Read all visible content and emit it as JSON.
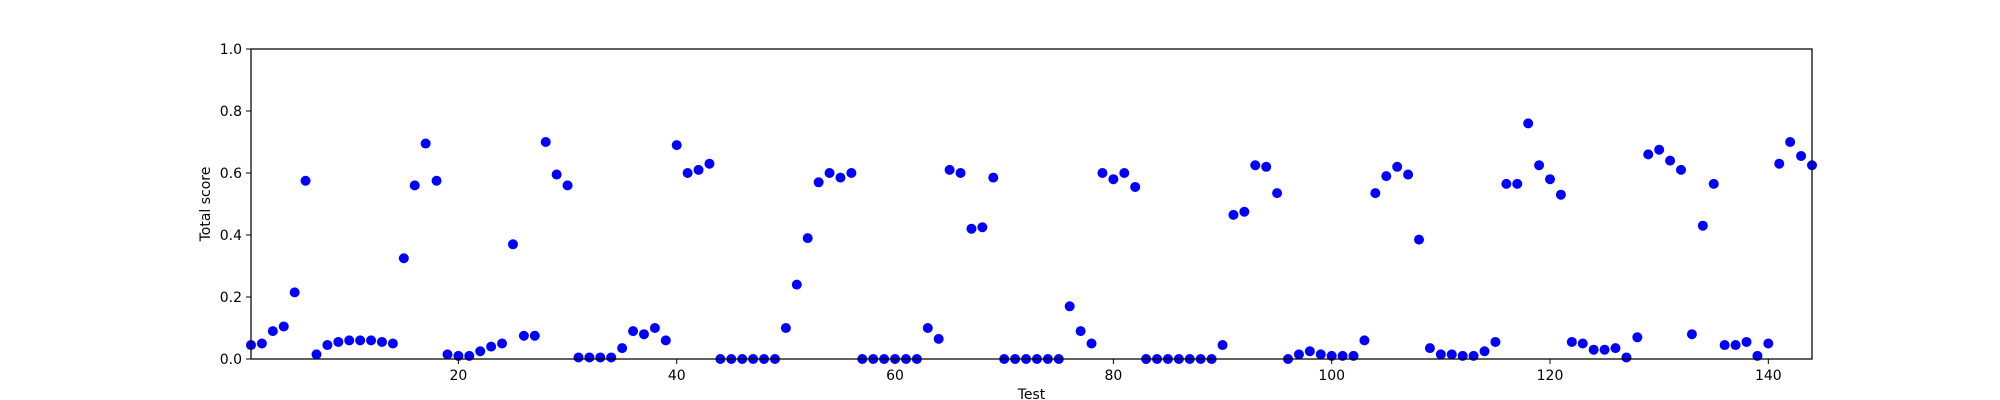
{
  "chart_data": {
    "type": "scatter",
    "title": "",
    "xlabel": "Test",
    "ylabel": "Total score",
    "xlim": [
      1,
      144
    ],
    "ylim": [
      0,
      1.0
    ],
    "xticks": [
      20,
      40,
      60,
      80,
      100,
      120,
      140
    ],
    "yticks": [
      0.0,
      0.2,
      0.4,
      0.6,
      0.8,
      1.0
    ],
    "xtick_labels": [
      "20",
      "40",
      "60",
      "80",
      "100",
      "120",
      "140"
    ],
    "ytick_labels": [
      "0.0",
      "0.2",
      "0.4",
      "0.6",
      "0.8",
      "1.0"
    ],
    "grid": false,
    "marker_color": "#0000ff",
    "series": [
      {
        "x": [
          1,
          2,
          3,
          4,
          5,
          6,
          7,
          8,
          9,
          10,
          11,
          12,
          13,
          14,
          15,
          16,
          17,
          18,
          19,
          20,
          21,
          22,
          23,
          24,
          25,
          26,
          27,
          28,
          29,
          30,
          31,
          32,
          33,
          34,
          35,
          36,
          37,
          38,
          39,
          40,
          41,
          42,
          43,
          44,
          45,
          46,
          47,
          48,
          49,
          50,
          51,
          52,
          53,
          54,
          55,
          56,
          57,
          58,
          59,
          60,
          61,
          62,
          63,
          64,
          65,
          66,
          67,
          68,
          69,
          70,
          71,
          72,
          73,
          74,
          75,
          76,
          77,
          78,
          79,
          80,
          81,
          82,
          83,
          84,
          85,
          86,
          87,
          88,
          89,
          90,
          91,
          92,
          93,
          94,
          95,
          96,
          97,
          98,
          99,
          100,
          101,
          102,
          103,
          104,
          105,
          106,
          107,
          108,
          109,
          110,
          111,
          112,
          113,
          114,
          115,
          116,
          117,
          118,
          119,
          120,
          121,
          122,
          123,
          124,
          125,
          126,
          127,
          128,
          129,
          130,
          131,
          132,
          133,
          134,
          135,
          136,
          137,
          138,
          139,
          140,
          141,
          142,
          143,
          144
        ],
        "y": [
          0.045,
          0.05,
          0.09,
          0.105,
          0.215,
          0.575,
          0.015,
          0.045,
          0.055,
          0.06,
          0.06,
          0.06,
          0.055,
          0.05,
          0.325,
          0.56,
          0.695,
          0.575,
          0.015,
          0.01,
          0.01,
          0.025,
          0.04,
          0.05,
          0.37,
          0.075,
          0.075,
          0.7,
          0.595,
          0.56,
          0.005,
          0.005,
          0.005,
          0.005,
          0.035,
          0.09,
          0.08,
          0.1,
          0.06,
          0.69,
          0.6,
          0.61,
          0.63,
          0.0,
          0.0,
          0.0,
          0.0,
          0.0,
          0.0,
          0.1,
          0.24,
          0.39,
          0.57,
          0.6,
          0.585,
          0.6,
          0.0,
          0.0,
          0.0,
          0.0,
          0.0,
          0.0,
          0.1,
          0.065,
          0.61,
          0.6,
          0.42,
          0.425,
          0.585,
          0.0,
          0.0,
          0.0,
          0.0,
          0.0,
          0.0,
          0.17,
          0.09,
          0.05,
          0.6,
          0.58,
          0.6,
          0.555,
          0.0,
          0.0,
          0.0,
          0.0,
          0.0,
          0.0,
          0.0,
          0.045,
          0.465,
          0.475,
          0.625,
          0.62,
          0.535,
          0.0,
          0.015,
          0.025,
          0.015,
          0.01,
          0.01,
          0.01,
          0.06,
          0.535,
          0.59,
          0.62,
          0.595,
          0.385,
          0.035,
          0.015,
          0.015,
          0.01,
          0.01,
          0.025,
          0.055,
          0.565,
          0.565,
          0.76,
          0.625,
          0.58,
          0.53,
          0.055,
          0.05,
          0.03,
          0.03,
          0.035,
          0.005,
          0.07,
          0.66,
          0.675,
          0.64,
          0.61,
          0.08,
          0.43,
          0.565,
          0.045,
          0.045,
          0.055,
          0.01,
          0.05,
          0.63,
          0.7,
          0.655,
          0.625
        ]
      }
    ]
  }
}
